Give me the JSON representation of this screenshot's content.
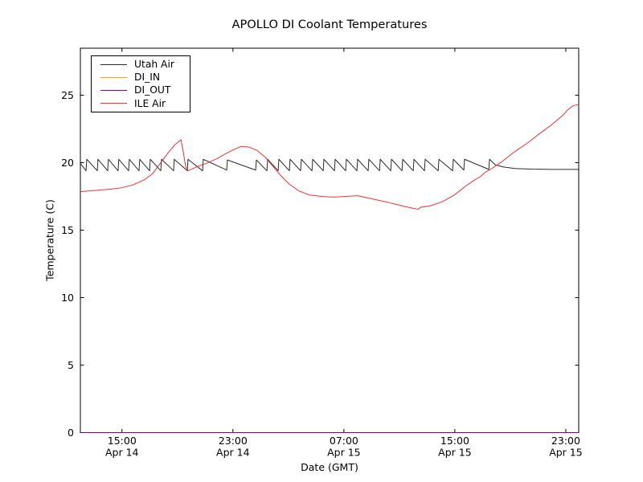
{
  "title": "APOLLO DI Coolant Temperatures",
  "xlabel": "Date (GMT)",
  "ylabel": "Temperature (C)",
  "legend": {
    "position": "upper left",
    "items": [
      {
        "label": "Utah Air",
        "color": "#2b2b2b"
      },
      {
        "label": "DI_IN",
        "color": "#ffa500"
      },
      {
        "label": "DI_OUT",
        "color": "#800080"
      },
      {
        "label": "ILE Air",
        "color": "#ee3333"
      }
    ]
  },
  "chart_data": {
    "type": "line",
    "title": "APOLLO DI Coolant Temperatures",
    "xlabel": "Date (GMT)",
    "ylabel": "Temperature (C)",
    "grid": false,
    "x_unit": "hours since Apr 14 00:00 GMT",
    "x_range": [
      12,
      47.93
    ],
    "y_range": [
      0,
      28.48
    ],
    "y_ticks": [
      0,
      5,
      10,
      15,
      20,
      25
    ],
    "x_ticks": [
      {
        "t": 15,
        "time": "15:00",
        "date": "Apr 14"
      },
      {
        "t": 23,
        "time": "23:00",
        "date": "Apr 14"
      },
      {
        "t": 31,
        "time": "07:00",
        "date": "Apr 15"
      },
      {
        "t": 39,
        "time": "15:00",
        "date": "Apr 15"
      },
      {
        "t": 47,
        "time": "23:00",
        "date": "Apr 15"
      }
    ],
    "series": [
      {
        "name": "Utah Air",
        "color": "#2b2b2b",
        "points": [
          [
            12.0,
            19.95
          ],
          [
            12.3,
            19.55
          ],
          [
            12.41,
            19.4
          ],
          [
            12.46,
            20.25
          ],
          [
            13.22,
            19.4
          ],
          [
            13.27,
            20.25
          ],
          [
            13.97,
            19.4
          ],
          [
            14.02,
            20.25
          ],
          [
            14.72,
            19.4
          ],
          [
            14.77,
            20.25
          ],
          [
            15.48,
            19.4
          ],
          [
            15.53,
            20.25
          ],
          [
            16.23,
            19.4
          ],
          [
            16.28,
            20.25
          ],
          [
            16.99,
            19.4
          ],
          [
            17.04,
            20.25
          ],
          [
            17.8,
            19.4
          ],
          [
            17.85,
            20.25
          ],
          [
            18.72,
            19.4
          ],
          [
            18.77,
            20.25
          ],
          [
            19.71,
            19.4
          ],
          [
            19.76,
            20.25
          ],
          [
            20.81,
            19.4
          ],
          [
            20.86,
            20.25
          ],
          [
            22.55,
            19.45
          ],
          [
            22.6,
            20.2
          ],
          [
            24.64,
            19.45
          ],
          [
            24.69,
            20.2
          ],
          [
            25.45,
            19.4
          ],
          [
            25.5,
            20.25
          ],
          [
            26.26,
            19.4
          ],
          [
            26.31,
            20.25
          ],
          [
            27.07,
            19.4
          ],
          [
            27.12,
            20.25
          ],
          [
            27.88,
            19.4
          ],
          [
            27.93,
            20.25
          ],
          [
            28.7,
            19.4
          ],
          [
            28.75,
            20.25
          ],
          [
            29.51,
            19.4
          ],
          [
            29.56,
            20.25
          ],
          [
            30.32,
            19.4
          ],
          [
            30.37,
            20.25
          ],
          [
            31.13,
            19.4
          ],
          [
            31.18,
            20.25
          ],
          [
            31.94,
            19.4
          ],
          [
            31.99,
            20.25
          ],
          [
            32.75,
            19.4
          ],
          [
            32.8,
            20.25
          ],
          [
            33.57,
            19.4
          ],
          [
            33.62,
            20.25
          ],
          [
            34.38,
            19.4
          ],
          [
            34.43,
            20.25
          ],
          [
            35.19,
            19.4
          ],
          [
            35.24,
            20.25
          ],
          [
            36.0,
            19.4
          ],
          [
            36.05,
            20.25
          ],
          [
            36.81,
            19.4
          ],
          [
            36.86,
            20.25
          ],
          [
            37.8,
            19.4
          ],
          [
            37.85,
            20.25
          ],
          [
            38.84,
            19.4
          ],
          [
            38.89,
            20.25
          ],
          [
            39.65,
            19.45
          ],
          [
            39.7,
            20.25
          ],
          [
            41.45,
            19.5
          ],
          [
            41.5,
            20.25
          ],
          [
            41.9,
            19.85
          ],
          [
            42.5,
            19.68
          ],
          [
            43.3,
            19.57
          ],
          [
            44.5,
            19.52
          ],
          [
            46.0,
            19.5
          ],
          [
            47.9,
            19.5
          ]
        ]
      },
      {
        "name": "DI_IN",
        "color": "#ffa500",
        "points": [
          [
            12.0,
            0.0
          ],
          [
            47.93,
            0.0
          ]
        ]
      },
      {
        "name": "DI_OUT",
        "color": "#800080",
        "points": [
          [
            12.0,
            0.0
          ],
          [
            47.93,
            0.0
          ]
        ]
      },
      {
        "name": "ILE Air",
        "color": "#ee3333",
        "points": [
          [
            12.0,
            17.85
          ],
          [
            12.6,
            17.9
          ],
          [
            13.2,
            17.95
          ],
          [
            14.3,
            18.05
          ],
          [
            15.0,
            18.15
          ],
          [
            15.8,
            18.35
          ],
          [
            16.64,
            18.75
          ],
          [
            17.22,
            19.2
          ],
          [
            17.8,
            20.0
          ],
          [
            18.38,
            20.8
          ],
          [
            18.84,
            21.35
          ],
          [
            19.25,
            21.7
          ],
          [
            19.42,
            20.8
          ],
          [
            19.59,
            19.7
          ],
          [
            19.77,
            19.4
          ],
          [
            20.41,
            19.7
          ],
          [
            21.1,
            19.95
          ],
          [
            21.86,
            20.3
          ],
          [
            22.55,
            20.7
          ],
          [
            23.13,
            21.0
          ],
          [
            23.59,
            21.2
          ],
          [
            24.17,
            21.15
          ],
          [
            24.75,
            20.9
          ],
          [
            25.33,
            20.4
          ],
          [
            25.91,
            19.7
          ],
          [
            26.49,
            19.0
          ],
          [
            27.07,
            18.4
          ],
          [
            27.77,
            17.9
          ],
          [
            28.52,
            17.6
          ],
          [
            29.39,
            17.5
          ],
          [
            30.26,
            17.45
          ],
          [
            31.13,
            17.5
          ],
          [
            32.0,
            17.55
          ],
          [
            32.87,
            17.35
          ],
          [
            34.03,
            17.1
          ],
          [
            35.19,
            16.8
          ],
          [
            36.06,
            16.6
          ],
          [
            36.35,
            16.55
          ],
          [
            36.55,
            16.7
          ],
          [
            37.22,
            16.8
          ],
          [
            38.09,
            17.1
          ],
          [
            38.96,
            17.6
          ],
          [
            39.83,
            18.3
          ],
          [
            40.4,
            18.7
          ],
          [
            40.81,
            18.95
          ],
          [
            41.2,
            19.3
          ],
          [
            41.57,
            19.5
          ],
          [
            42.0,
            19.8
          ],
          [
            42.43,
            20.1
          ],
          [
            43.3,
            20.8
          ],
          [
            44.3,
            21.5
          ],
          [
            45.04,
            22.1
          ],
          [
            45.91,
            22.75
          ],
          [
            46.78,
            23.5
          ],
          [
            47.13,
            23.9
          ],
          [
            47.42,
            24.15
          ],
          [
            47.65,
            24.25
          ],
          [
            47.88,
            24.3
          ]
        ]
      }
    ]
  }
}
